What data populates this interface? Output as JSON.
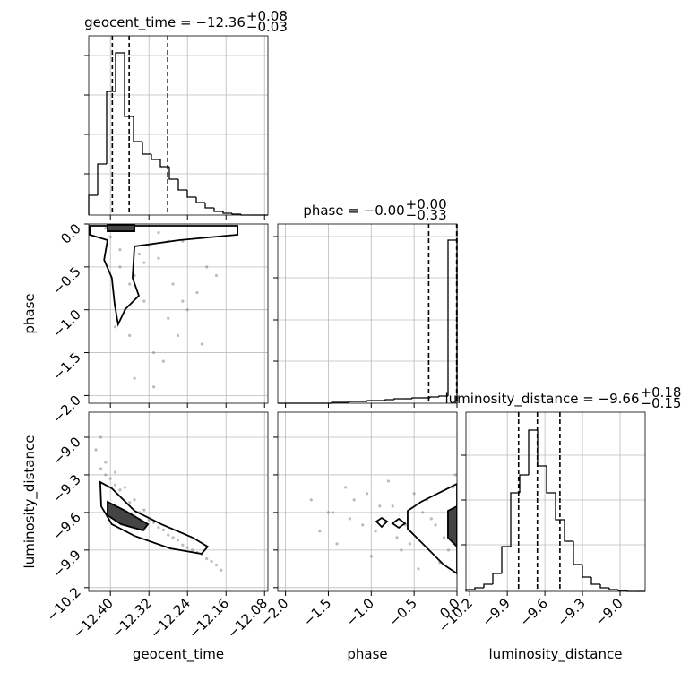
{
  "chart_data": {
    "type": "corner",
    "axes": [
      {
        "label": "geocent_time",
        "lim": [
          -12.445,
          -12.073
        ],
        "ticks": [
          {
            "value": -12.4,
            "label": "−12.40"
          },
          {
            "value": -12.32,
            "label": "−12.32"
          },
          {
            "value": -12.24,
            "label": "−12.24"
          },
          {
            "value": -12.16,
            "label": "−12.16"
          },
          {
            "value": -12.08,
            "label": "−12.08"
          }
        ]
      },
      {
        "label": "phase",
        "lim": [
          -2.09,
          0.0
        ],
        "ticks": [
          {
            "value": -2.0,
            "label": "−2.0"
          },
          {
            "value": -1.5,
            "label": "−1.5"
          },
          {
            "value": -1.0,
            "label": "−1.0"
          },
          {
            "value": -0.5,
            "label": "−0.5"
          },
          {
            "value": 0,
            "label": "0.0"
          }
        ]
      },
      {
        "label": "luminosity_distance",
        "lim": [
          -10.23,
          -8.8
        ],
        "ticks": [
          {
            "value": -10.2,
            "label": "−10.2"
          },
          {
            "value": -9.9,
            "label": "−9.9"
          },
          {
            "value": -9.6,
            "label": "−9.6"
          },
          {
            "value": -9.3,
            "label": "−9.3"
          },
          {
            "value": -9.0,
            "label": "−9.0"
          }
        ]
      }
    ],
    "panels": [
      {
        "type": "histogram",
        "axis": 0,
        "title": "geocent_time = −12.36",
        "title_upper": "+0.08",
        "title_lower": "−0.03",
        "bins": [
          -12.445,
          -12.4264,
          -12.4078,
          -12.3892,
          -12.3706,
          -12.352,
          -12.3334,
          -12.3148,
          -12.2962,
          -12.2776,
          -12.259,
          -12.2404,
          -12.2218,
          -12.2032,
          -12.1846,
          -12.166,
          -12.1474,
          -12.1288,
          -12.1102,
          -12.0916,
          -12.073
        ],
        "values": [
          22,
          57,
          138,
          181,
          110,
          82,
          68,
          62,
          54,
          40,
          28,
          20,
          14,
          8,
          4,
          2,
          1,
          0,
          0,
          0
        ],
        "ylim": [
          0,
          200
        ],
        "yticks": [
          46,
          90,
          134,
          178
        ],
        "quantiles": [
          -12.396,
          -12.361,
          -12.281
        ]
      },
      {
        "type": "histogram",
        "axis": 1,
        "title": "phase = −0.00",
        "title_upper": "+0.00",
        "title_lower": "−0.33",
        "bins": [
          -2.09,
          -1.9855,
          -1.881,
          -1.7765,
          -1.672,
          -1.5675,
          -1.463,
          -1.3585,
          -1.254,
          -1.1495,
          -1.045,
          -0.9405,
          -0.836,
          -0.7315,
          -0.627,
          -0.5225,
          -0.418,
          -0.3135,
          -0.209,
          -0.1045,
          0.0
        ],
        "values": [
          0,
          0,
          0,
          0,
          0,
          0,
          1,
          1,
          2,
          2,
          3,
          3,
          4,
          5,
          5,
          6,
          6,
          7,
          8,
          182
        ],
        "ylim": [
          0,
          200
        ],
        "yticks": [
          47,
          93,
          140,
          186
        ],
        "quantiles": [
          -0.33,
          -0.004,
          0.0
        ]
      },
      {
        "type": "histogram",
        "axis": 2,
        "title": "luminosity_distance = −9.66",
        "title_upper": "+0.18",
        "title_lower": "−0.15",
        "bins": [
          -10.23,
          -10.1585,
          -10.087,
          -10.0155,
          -9.944,
          -9.8725,
          -9.801,
          -9.7295,
          -9.658,
          -9.5865,
          -9.515,
          -9.4435,
          -9.372,
          -9.3005,
          -9.229,
          -9.1575,
          -9.086,
          -9.0145,
          -8.943,
          -8.8715,
          -8.8
        ],
        "values": [
          2,
          4,
          8,
          20,
          50,
          110,
          130,
          180,
          140,
          110,
          80,
          56,
          30,
          16,
          8,
          4,
          2,
          1,
          0,
          0
        ],
        "ylim": [
          0,
          200
        ],
        "yticks": [
          52,
          102,
          152
        ],
        "quantiles": [
          -9.81,
          -9.66,
          -9.48
        ]
      },
      {
        "type": "scatter",
        "x_axis": 0,
        "y_axis": 1,
        "x": [
          -12.41,
          -12.38,
          -12.35,
          -12.3,
          -12.25,
          -12.2,
          -12.33,
          -12.28,
          -12.36,
          -12.39,
          -12.22,
          -12.31,
          -12.27,
          -12.34,
          -12.37,
          -12.4,
          -12.29,
          -12.24,
          -12.32,
          -12.26,
          -12.18,
          -12.35,
          -12.3,
          -12.38,
          -12.21,
          -12.33,
          -12.28,
          -12.36,
          -12.25,
          -12.31
        ],
        "y": [
          -0.05,
          -0.3,
          -0.6,
          -0.4,
          -0.2,
          -0.5,
          -0.9,
          -1.1,
          -1.3,
          -1.2,
          -0.8,
          -1.5,
          -0.7,
          -0.35,
          -1.0,
          -0.15,
          -1.6,
          -1.0,
          -0.25,
          -1.3,
          -0.6,
          -1.8,
          -0.1,
          -0.5,
          -1.4,
          -0.45,
          -0.2,
          -0.7,
          -0.9,
          -1.9
        ],
        "contours": [
          {
            "fill": "none",
            "x": [
              -12.443,
              -12.406,
              -12.413,
              -12.397,
              -12.391,
              -12.384,
              -12.369,
              -12.341,
              -12.354,
              -12.35,
              -12.257,
              -12.136,
              -12.136,
              -12.443
            ],
            "y": [
              -0.125,
              -0.188,
              -0.418,
              -0.627,
              -0.941,
              -1.17,
              -0.993,
              -0.836,
              -0.627,
              -0.261,
              -0.188,
              -0.125,
              -0.021,
              -0.021
            ]
          },
          {
            "fill": "#444444",
            "x": [
              -12.406,
              -12.35,
              -12.35,
              -12.406
            ],
            "y": [
              -0.01,
              -0.01,
              -0.084,
              -0.084
            ]
          }
        ]
      },
      {
        "type": "scatter",
        "x_axis": 0,
        "y_axis": 2,
        "x": [
          -12.43,
          -12.42,
          -12.41,
          -12.4,
          -12.39,
          -12.38,
          -12.37,
          -12.36,
          -12.35,
          -12.34,
          -12.33,
          -12.32,
          -12.31,
          -12.3,
          -12.29,
          -12.28,
          -12.27,
          -12.26,
          -12.25,
          -12.24,
          -12.23,
          -12.22,
          -12.21,
          -12.2,
          -12.19,
          -12.18,
          -12.17,
          -12.42,
          -12.41,
          -12.39
        ],
        "y": [
          -9.1,
          -9.25,
          -9.2,
          -9.33,
          -9.38,
          -9.42,
          -9.4,
          -9.52,
          -9.5,
          -9.6,
          -9.58,
          -9.66,
          -9.68,
          -9.72,
          -9.74,
          -9.78,
          -9.8,
          -9.82,
          -9.86,
          -9.88,
          -9.9,
          -9.92,
          -9.94,
          -9.97,
          -9.99,
          -10.02,
          -10.06,
          -9.0,
          -9.3,
          -9.28
        ],
        "contours": [
          {
            "fill": "none",
            "x": [
              -12.421,
              -12.397,
              -12.35,
              -12.294,
              -12.229,
              -12.198,
              -12.211,
              -12.276,
              -12.35,
              -12.397,
              -12.419
            ],
            "y": [
              -9.358,
              -9.408,
              -9.587,
              -9.694,
              -9.801,
              -9.873,
              -9.93,
              -9.887,
              -9.787,
              -9.694,
              -9.551
            ]
          },
          {
            "fill": "#444444",
            "x": [
              -12.406,
              -12.369,
              -12.322,
              -12.332,
              -12.378,
              -12.406
            ],
            "y": [
              -9.515,
              -9.587,
              -9.694,
              -9.744,
              -9.694,
              -9.622
            ]
          }
        ]
      },
      {
        "type": "scatter",
        "x_axis": 1,
        "y_axis": 2,
        "x": [
          -1.7,
          -1.5,
          -1.3,
          -1.1,
          -0.9,
          -0.7,
          -0.5,
          -0.3,
          -0.1,
          -1.6,
          -1.4,
          -1.2,
          -1.0,
          -0.8,
          -0.6,
          -0.4,
          -0.2,
          -0.05,
          -1.25,
          -0.95,
          -0.65,
          -0.35,
          -0.15,
          -1.45,
          -0.75,
          -0.55,
          -0.25,
          -0.02,
          -1.05,
          -0.45
        ],
        "y": [
          -9.5,
          -9.6,
          -9.4,
          -9.7,
          -9.55,
          -9.8,
          -9.45,
          -9.65,
          -9.9,
          -9.75,
          -9.85,
          -9.5,
          -9.95,
          -9.35,
          -9.7,
          -9.6,
          -10.0,
          -9.4,
          -9.65,
          -9.75,
          -9.9,
          -9.5,
          -9.8,
          -9.6,
          -9.55,
          -9.85,
          -9.7,
          -9.3,
          -9.45,
          -10.05
        ],
        "contours": [
          {
            "fill": "none",
            "x": [
              -0.575,
              -0.418,
              -0.105,
              0.0,
              0.0,
              -0.157,
              -0.418,
              -0.575
            ],
            "y": [
              -9.587,
              -9.515,
              -9.408,
              -9.372,
              -10.087,
              -10.016,
              -9.837,
              -9.73
            ]
          },
          {
            "fill": "none",
            "x": [
              -0.94,
              -0.878,
              -0.815,
              -0.878
            ],
            "y": [
              -9.672,
              -9.644,
              -9.672,
              -9.715
            ]
          },
          {
            "fill": "none",
            "x": [
              -0.752,
              -0.679,
              -0.606,
              -0.679
            ],
            "y": [
              -9.687,
              -9.651,
              -9.687,
              -9.722
            ]
          },
          {
            "fill": "#444444",
            "x": [
              -0.105,
              0.0,
              0.0,
              -0.105
            ],
            "y": [
              -9.587,
              -9.551,
              -9.873,
              -9.801
            ]
          }
        ]
      }
    ]
  }
}
